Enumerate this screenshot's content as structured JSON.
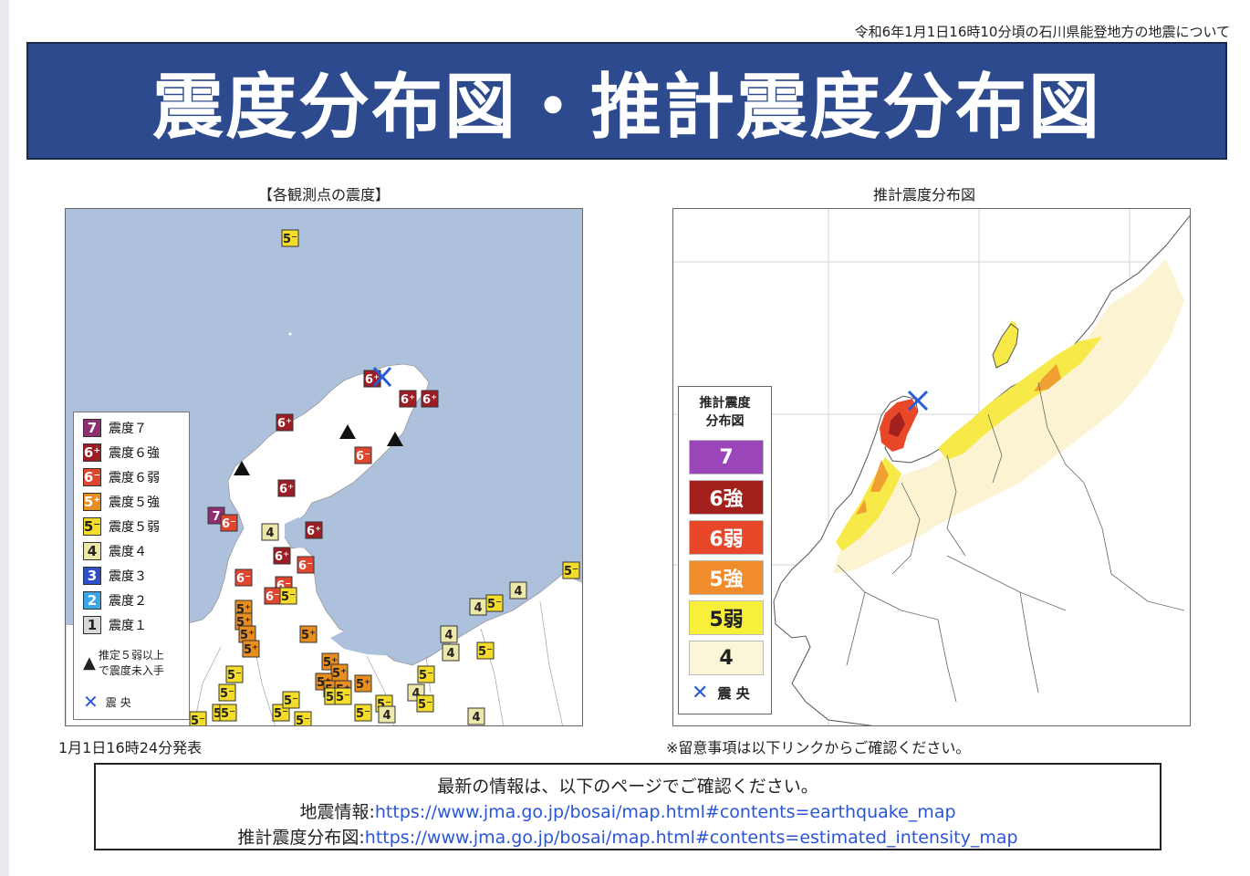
{
  "header": {
    "note": "令和6年1月1日16時10分頃の石川県能登地方の地震について",
    "title": "震度分布図・推計震度分布図"
  },
  "left_panel": {
    "title": "【各観測点の震度】",
    "issued": "1月1日16時24分発表",
    "legend": [
      {
        "badge": "7",
        "label": "震度７",
        "color": "#8e2f6f"
      },
      {
        "badge": "6⁺",
        "label": "震度６強",
        "color": "#9c1d24"
      },
      {
        "badge": "6⁻",
        "label": "震度６弱",
        "color": "#e0452e"
      },
      {
        "badge": "5⁺",
        "label": "震度５強",
        "color": "#e88d1e"
      },
      {
        "badge": "5⁻",
        "label": "震度５弱",
        "color": "#f4dd2a"
      },
      {
        "badge": "4",
        "label": "震度４",
        "color": "#ece8a8"
      },
      {
        "badge": "3",
        "label": "震度３",
        "color": "#2f4fc8"
      },
      {
        "badge": "2",
        "label": "震度２",
        "color": "#3aa6e8"
      },
      {
        "badge": "1",
        "label": "震度１",
        "color": "#d8d8d8"
      }
    ],
    "triangle_note_1": "推定５弱以上",
    "triangle_note_2": "で震度未入手",
    "epicenter_label": "震 央",
    "stations": [
      {
        "badge": "5⁻",
        "level": "5-"
      },
      {
        "badge": "6⁺",
        "level": "6+"
      },
      {
        "badge": "6⁺",
        "level": "6+"
      },
      {
        "badge": "6⁺",
        "level": "6+"
      },
      {
        "badge": "6⁺",
        "level": "6+"
      },
      {
        "badge": "6⁻",
        "level": "6-"
      },
      {
        "badge": "6⁺",
        "level": "6+"
      },
      {
        "badge": "7",
        "level": "7"
      },
      {
        "badge": "6⁻",
        "level": "6-"
      },
      {
        "badge": "4",
        "level": "4"
      },
      {
        "badge": "6⁺",
        "level": "6+"
      },
      {
        "badge": "6⁺",
        "level": "6+"
      },
      {
        "badge": "6⁻",
        "level": "6-"
      },
      {
        "badge": "6⁻",
        "level": "6-"
      },
      {
        "badge": "6⁻",
        "level": "6-"
      },
      {
        "badge": "6⁻",
        "level": "6-"
      },
      {
        "badge": "5⁻",
        "level": "5-"
      },
      {
        "badge": "5⁺",
        "level": "5+"
      },
      {
        "badge": "5⁺",
        "level": "5+"
      },
      {
        "badge": "5⁺",
        "level": "5+"
      },
      {
        "badge": "5⁺",
        "level": "5+"
      },
      {
        "badge": "5⁺",
        "level": "5+"
      },
      {
        "badge": "5⁻",
        "level": "5-"
      },
      {
        "badge": "5⁻",
        "level": "5-"
      },
      {
        "badge": "5⁻",
        "level": "5-"
      },
      {
        "badge": "5⁺",
        "level": "5+"
      },
      {
        "badge": "5⁺",
        "level": "5+"
      },
      {
        "badge": "5⁺",
        "level": "5+"
      },
      {
        "badge": "5⁺",
        "level": "5+"
      },
      {
        "badge": "5⁺",
        "level": "5+"
      },
      {
        "badge": "5⁺",
        "level": "5+"
      },
      {
        "badge": "5⁻",
        "level": "5-"
      },
      {
        "badge": "5⁻",
        "level": "5-"
      },
      {
        "badge": "5⁻",
        "level": "5-"
      },
      {
        "badge": "5⁻",
        "level": "5-"
      },
      {
        "badge": "5⁻",
        "level": "5-"
      },
      {
        "badge": "4",
        "level": "4"
      },
      {
        "badge": "5⁻",
        "level": "5-"
      },
      {
        "badge": "5⁻",
        "level": "5-"
      },
      {
        "badge": "4",
        "level": "4"
      },
      {
        "badge": "5⁻",
        "level": "5-"
      },
      {
        "badge": "4",
        "level": "4"
      },
      {
        "badge": "5⁻",
        "level": "5-"
      },
      {
        "badge": "4",
        "level": "4"
      },
      {
        "badge": "5⁻",
        "level": "5-"
      },
      {
        "badge": "4",
        "level": "4"
      },
      {
        "badge": "5⁻",
        "level": "5-"
      },
      {
        "badge": "5⁻",
        "level": "5-"
      },
      {
        "badge": "5⁻",
        "level": "5-"
      },
      {
        "badge": "4",
        "level": "4"
      },
      {
        "badge": "4",
        "level": "4"
      },
      {
        "badge": "5⁻",
        "level": "5-"
      }
    ]
  },
  "right_panel": {
    "title": "推計震度分布図",
    "legend_title_1": "推計震度",
    "legend_title_2": "分布図",
    "legend": [
      {
        "label": "7",
        "color": "#9a45b8",
        "text_color": "#ffffff"
      },
      {
        "label": "6強",
        "color": "#a3201c",
        "text_color": "#ffffff"
      },
      {
        "label": "6弱",
        "color": "#e8472a",
        "text_color": "#ffffff"
      },
      {
        "label": "5強",
        "color": "#f08c2c",
        "text_color": "#ffffff"
      },
      {
        "label": "5弱",
        "color": "#f7ef3a",
        "text_color": "#222222"
      },
      {
        "label": "4",
        "color": "#fbf6d8",
        "text_color": "#222222"
      }
    ],
    "epicenter_label": "震 央",
    "caution": "※留意事項は以下リンクからご確認ください。"
  },
  "info": {
    "line1": "最新の情報は、以下のページでご確認ください。",
    "line2_label": "地震情報:",
    "line2_url": "https://www.jma.go.jp/bosai/map.html#contents=earthquake_map",
    "line3_label": "推計震度分布図:",
    "line3_url": "https://www.jma.go.jp/bosai/map.html#contents=estimated_intensity_map"
  },
  "colors": {
    "banner": "#2d4a8e",
    "sea": "#adc0dc",
    "link": "#2a55d8",
    "epicenter": "#2a5bd8"
  }
}
